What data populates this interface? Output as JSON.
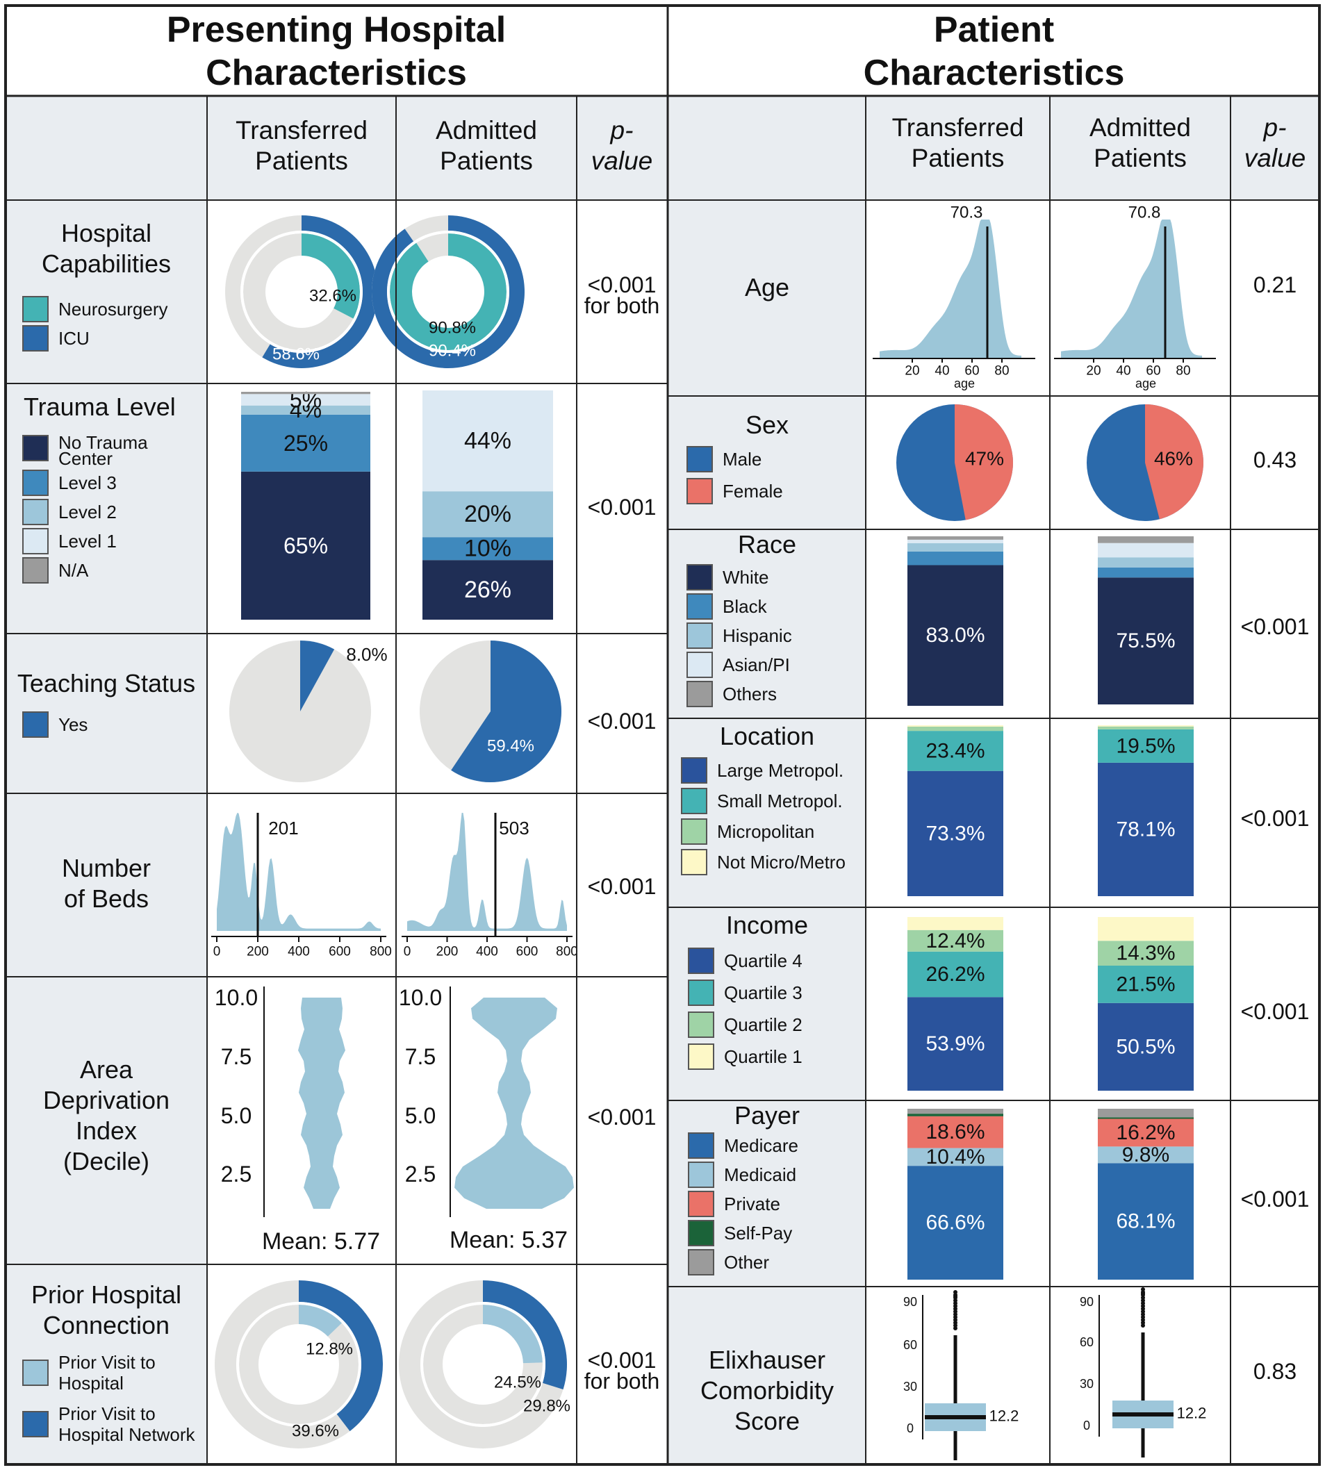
{
  "titles": {
    "left": "Presenting Hospital Characteristics",
    "left_l1": "Presenting Hospital",
    "left_l2": "Characteristics",
    "right_l1": "Patient",
    "right_l2": "Characteristics"
  },
  "headers": {
    "transferred_l1": "Transferred",
    "transferred_l2": "Patients",
    "admitted_l1": "Admitted",
    "admitted_l2": "Patients",
    "p_l1": "p-",
    "p_l2": "value"
  },
  "colors": {
    "grey": "#e9edf1",
    "ring": "#e3e3e1",
    "teal": "#44b3b4",
    "blue": "#2b6aab",
    "navy": "#1f2e55",
    "lightblue": "#9dc6da",
    "density": "#9cc6d8",
    "coral": "#ea7268",
    "midblue": "#3f89bd",
    "paleblue": "#dce9f3",
    "darkgreen": "#1b6339",
    "green": "#9fd3a6",
    "cream": "#fdf8c7",
    "lgrey": "#9b9b9b",
    "royal": "#2a539c"
  },
  "rows": {
    "hospital_capabilities": {
      "label": "Hospital Capabilities",
      "legend": [
        "Neurosurgery",
        "ICU"
      ],
      "p": "<0.001",
      "p2": "for both"
    },
    "trauma": {
      "label": "Trauma Level",
      "legend": [
        "No Trauma Center",
        "Level 3",
        "Level 2",
        "Level 1",
        "N/A"
      ],
      "p": "<0.001"
    },
    "teaching": {
      "label": "Teaching Status",
      "legend": [
        "Yes"
      ],
      "p": "<0.001"
    },
    "beds": {
      "label": "Number of Beds",
      "p": "<0.001"
    },
    "adi": {
      "label": "Area Deprivation Index (Decile)",
      "p": "<0.001"
    },
    "prior": {
      "label": "Prior Hospital Connection",
      "legend": [
        "Prior Visit to Hospital",
        "Prior Visit to Hospital Network"
      ],
      "p": "<0.001",
      "p2": "for both"
    },
    "age": {
      "label": "Age",
      "p": "0.21"
    },
    "sex": {
      "label": "Sex",
      "legend": [
        "Male",
        "Female"
      ],
      "p": "0.43"
    },
    "race": {
      "label": "Race",
      "legend": [
        "White",
        "Black",
        "Hispanic",
        "Asian/PI",
        "Others"
      ],
      "p": "<0.001"
    },
    "location": {
      "label": "Location",
      "legend": [
        "Large Metropol.",
        "Small Metropol.",
        "Micropolitan",
        "Not Micro/Metro"
      ],
      "p": "<0.001"
    },
    "income": {
      "label": "Income",
      "legend": [
        "Quartile 4",
        "Quartile 3",
        "Quartile 2",
        "Quartile 1"
      ],
      "p": "<0.001"
    },
    "payer": {
      "label": "Payer",
      "legend": [
        "Medicare",
        "Medicaid",
        "Private",
        "Self-Pay",
        "Other"
      ],
      "p": "<0.001"
    },
    "elix": {
      "label": "Elixhauser Comorbidity Score",
      "p": "0.83"
    }
  },
  "chart_data": [
    {
      "id": "hospcap",
      "type": "donut",
      "series": [
        {
          "name": "Transferred",
          "values": {
            "Neurosurgery": 32.6,
            "ICU": 58.6
          },
          "labels": [
            "32.6%",
            "58.6%"
          ]
        },
        {
          "name": "Admitted",
          "values": {
            "Neurosurgery": 90.8,
            "ICU": 90.4
          },
          "labels": [
            "90.8%",
            "90.4%"
          ]
        }
      ]
    },
    {
      "id": "trauma",
      "type": "bar",
      "stacked": true,
      "categories": [
        "No Trauma Center",
        "Level 3",
        "Level 2",
        "Level 1",
        "N/A"
      ],
      "series": [
        {
          "name": "Transferred",
          "values": [
            65,
            25,
            4,
            5,
            1
          ],
          "labels": [
            "65%",
            "25%",
            "4%",
            "5%",
            ""
          ]
        },
        {
          "name": "Admitted",
          "values": [
            26,
            10,
            20,
            44,
            0
          ],
          "labels": [
            "26%",
            "10%",
            "20%",
            "44%",
            ""
          ]
        }
      ]
    },
    {
      "id": "teaching",
      "type": "pie",
      "series": [
        {
          "name": "Transferred",
          "values": {
            "Yes": 8.0
          },
          "label": "8.0%"
        },
        {
          "name": "Admitted",
          "values": {
            "Yes": 59.4
          },
          "label": "59.4%"
        }
      ]
    },
    {
      "id": "beds",
      "type": "area",
      "xlim": [
        0,
        800
      ],
      "xticks": [
        "0",
        "200",
        "400",
        "600",
        "800"
      ],
      "series": [
        {
          "name": "Transferred",
          "median": 201,
          "median_label": "201"
        },
        {
          "name": "Admitted",
          "median": 503,
          "median_label": "503"
        }
      ]
    },
    {
      "id": "adi",
      "type": "violin",
      "yticks": [
        "2.5",
        "5.0",
        "7.5",
        "10.0"
      ],
      "ylim": [
        1,
        10
      ],
      "series": [
        {
          "name": "Transferred",
          "mean_label": "Mean: 5.77"
        },
        {
          "name": "Admitted",
          "mean_label": "Mean: 5.37"
        }
      ]
    },
    {
      "id": "prior",
      "type": "donut",
      "series": [
        {
          "name": "Transferred",
          "values": {
            "Prior Visit to Hospital": 12.8,
            "Prior Visit to Hospital Network": 39.6
          },
          "labels": [
            "12.8%",
            "39.6%"
          ]
        },
        {
          "name": "Admitted",
          "values": {
            "Prior Visit to Hospital": 24.5,
            "Prior Visit to Hospital Network": 29.8
          },
          "labels": [
            "24.5%",
            "29.8%"
          ]
        }
      ]
    },
    {
      "id": "age",
      "type": "area",
      "xlabel": "age",
      "xticks": [
        "20",
        "40",
        "60",
        "80"
      ],
      "series": [
        {
          "name": "Transferred",
          "median": 70.3,
          "median_label": "70.3"
        },
        {
          "name": "Admitted",
          "median": 70.8,
          "median_label": "70.8"
        }
      ]
    },
    {
      "id": "sex",
      "type": "pie",
      "series": [
        {
          "name": "Transferred",
          "values": {
            "Male": 53,
            "Female": 47
          },
          "label": "47%"
        },
        {
          "name": "Admitted",
          "values": {
            "Male": 54,
            "Female": 46
          },
          "label": "46%"
        }
      ]
    },
    {
      "id": "race",
      "type": "bar",
      "stacked": true,
      "categories": [
        "White",
        "Black",
        "Hispanic",
        "Asian/PI",
        "Others"
      ],
      "series": [
        {
          "name": "Transferred",
          "values": [
            83.0,
            8,
            5,
            2,
            2
          ],
          "labels": [
            "83.0%",
            "",
            "",
            "",
            ""
          ]
        },
        {
          "name": "Admitted",
          "values": [
            75.5,
            6,
            6,
            8.5,
            4
          ],
          "labels": [
            "75.5%",
            "",
            "",
            "",
            ""
          ]
        }
      ]
    },
    {
      "id": "location",
      "type": "bar",
      "stacked": true,
      "categories": [
        "Large Metropol.",
        "Small Metropol.",
        "Micropolitan",
        "Not Micro/Metro"
      ],
      "series": [
        {
          "name": "Transferred",
          "values": [
            73.3,
            23.4,
            2.5,
            0.8
          ],
          "labels": [
            "73.3%",
            "23.4%",
            "",
            ""
          ]
        },
        {
          "name": "Admitted",
          "values": [
            78.1,
            19.5,
            1.7,
            0.7
          ],
          "labels": [
            "78.1%",
            "19.5%",
            "",
            ""
          ]
        }
      ]
    },
    {
      "id": "income",
      "type": "bar",
      "stacked": true,
      "categories": [
        "Quartile 4",
        "Quartile 3",
        "Quartile 2",
        "Quartile 1"
      ],
      "series": [
        {
          "name": "Transferred",
          "values": [
            53.9,
            26.2,
            12.4,
            7.5
          ],
          "labels": [
            "53.9%",
            "26.2%",
            "12.4%",
            ""
          ]
        },
        {
          "name": "Admitted",
          "values": [
            50.5,
            21.5,
            14.3,
            13.7
          ],
          "labels": [
            "50.5%",
            "21.5%",
            "14.3%",
            ""
          ]
        }
      ]
    },
    {
      "id": "payer",
      "type": "bar",
      "stacked": true,
      "categories": [
        "Medicare",
        "Medicaid",
        "Private",
        "Self-Pay",
        "Other"
      ],
      "series": [
        {
          "name": "Transferred",
          "values": [
            66.6,
            10.4,
            18.6,
            1.5,
            2.9
          ],
          "labels": [
            "66.6%",
            "10.4%",
            "18.6%",
            "",
            ""
          ]
        },
        {
          "name": "Admitted",
          "values": [
            68.1,
            9.8,
            16.2,
            0.9,
            5.0
          ],
          "labels": [
            "68.1%",
            "9.8%",
            "16.2%",
            "",
            ""
          ]
        }
      ]
    },
    {
      "id": "elix",
      "type": "box",
      "ylim": [
        0,
        90
      ],
      "yticks": [
        "0",
        "30",
        "60",
        "90"
      ],
      "series": [
        {
          "name": "Transferred",
          "median": 12.2,
          "median_label": "12.2"
        },
        {
          "name": "Admitted",
          "median": 12.2,
          "median_label": "12.2"
        }
      ]
    }
  ]
}
